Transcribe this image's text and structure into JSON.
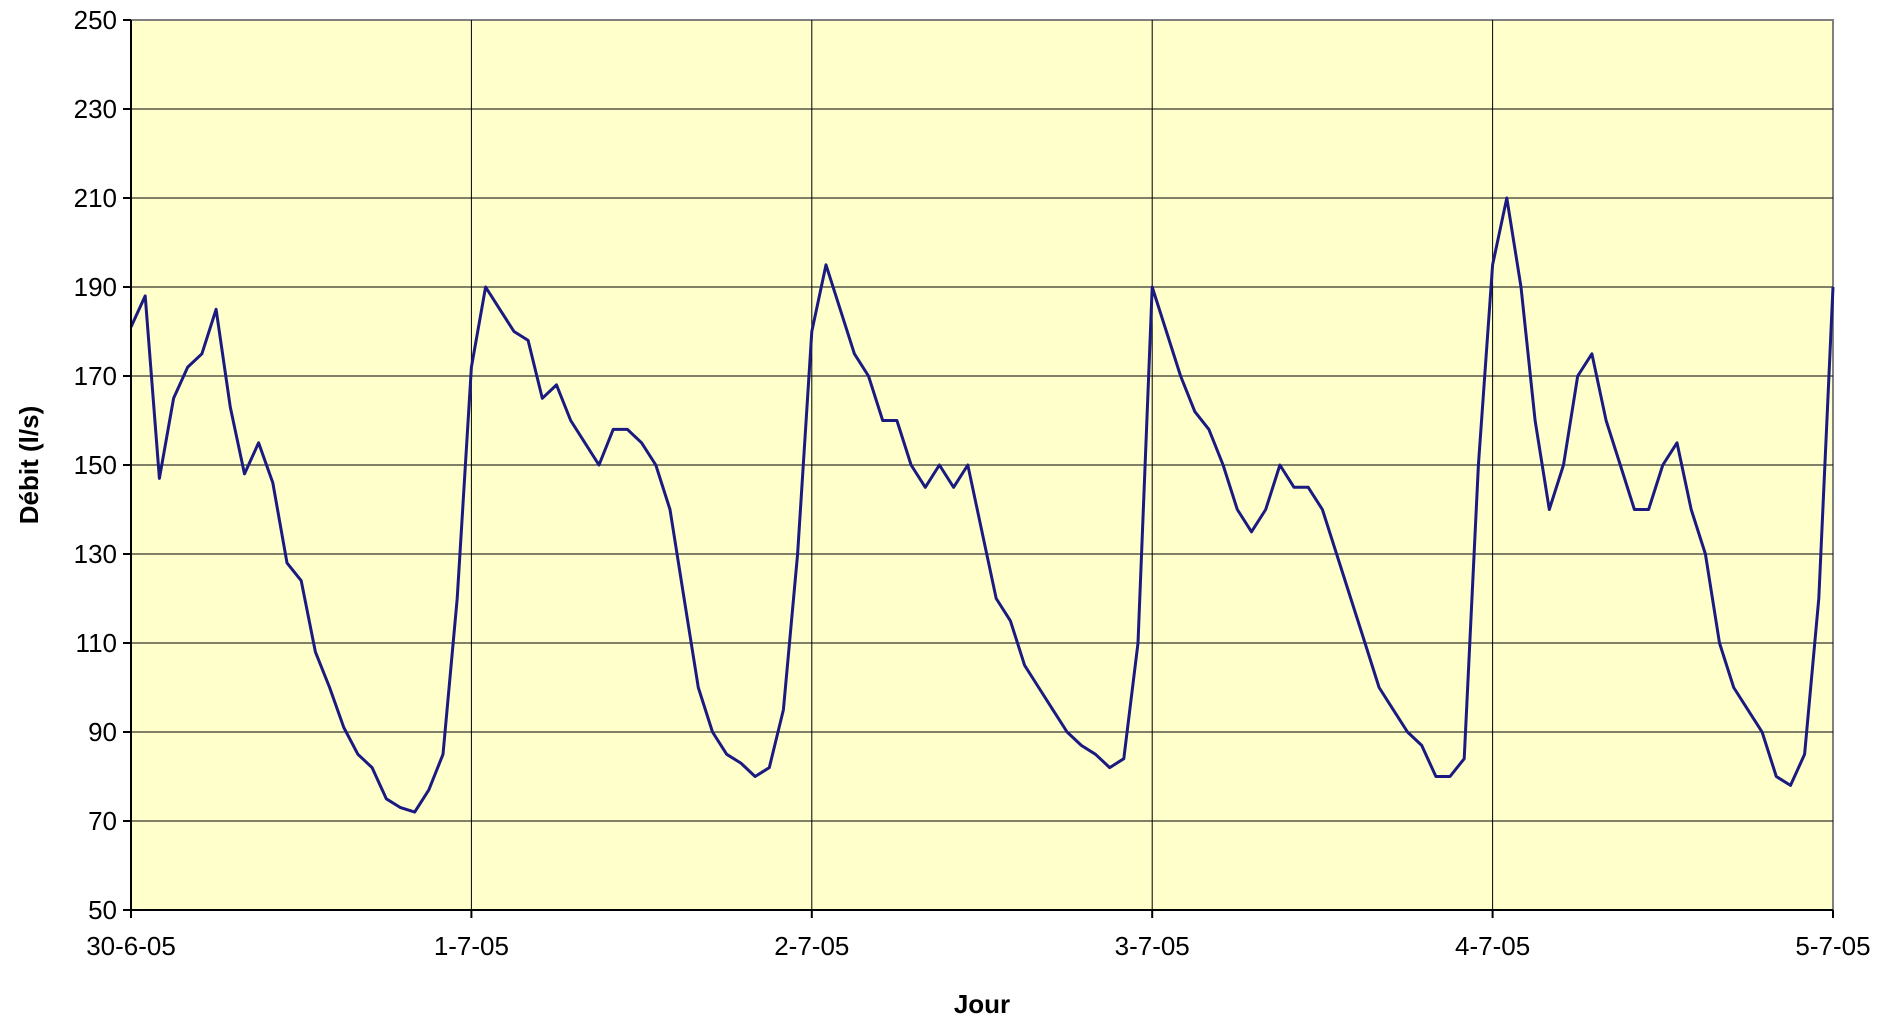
{
  "chart_data": {
    "type": "line",
    "title": "",
    "xlabel": "Jour",
    "ylabel": "Débit (l/s)",
    "xlim": [
      "30-6-05",
      "5-7-05"
    ],
    "ylim": [
      50,
      250
    ],
    "x_ticks": [
      "30-6-05",
      "1-7-05",
      "2-7-05",
      "3-7-05",
      "4-7-05",
      "5-7-05"
    ],
    "y_ticks": [
      50,
      70,
      90,
      110,
      130,
      150,
      170,
      190,
      210,
      230,
      250
    ],
    "grid": true,
    "legend": "none",
    "colors": {
      "line": "#1a1a80",
      "plot_background": "#ffffcc",
      "grid": "#000000"
    },
    "series": [
      {
        "x": [
          "30-6-05 00:00",
          "30-6-05 01:00",
          "30-6-05 02:00",
          "30-6-05 03:00",
          "30-6-05 04:00",
          "30-6-05 05:00",
          "30-6-05 06:00",
          "30-6-05 07:00",
          "30-6-05 08:00",
          "30-6-05 09:00",
          "30-6-05 10:00",
          "30-6-05 11:00",
          "30-6-05 12:00",
          "30-6-05 13:00",
          "30-6-05 14:00",
          "30-6-05 15:00",
          "30-6-05 16:00",
          "30-6-05 17:00",
          "30-6-05 18:00",
          "30-6-05 19:00",
          "30-6-05 20:00",
          "30-6-05 21:00",
          "30-6-05 22:00",
          "30-6-05 23:00",
          "1-7-05 00:00",
          "1-7-05 01:00",
          "1-7-05 02:00",
          "1-7-05 03:00",
          "1-7-05 04:00",
          "1-7-05 05:00",
          "1-7-05 06:00",
          "1-7-05 07:00",
          "1-7-05 08:00",
          "1-7-05 09:00",
          "1-7-05 10:00",
          "1-7-05 11:00",
          "1-7-05 12:00",
          "1-7-05 13:00",
          "1-7-05 14:00",
          "1-7-05 15:00",
          "1-7-05 16:00",
          "1-7-05 17:00",
          "1-7-05 18:00",
          "1-7-05 19:00",
          "1-7-05 20:00",
          "1-7-05 21:00",
          "1-7-05 22:00",
          "1-7-05 23:00",
          "2-7-05 00:00",
          "2-7-05 01:00",
          "2-7-05 02:00",
          "2-7-05 03:00",
          "2-7-05 04:00",
          "2-7-05 05:00",
          "2-7-05 06:00",
          "2-7-05 07:00",
          "2-7-05 08:00",
          "2-7-05 09:00",
          "2-7-05 10:00",
          "2-7-05 11:00",
          "2-7-05 12:00",
          "2-7-05 13:00",
          "2-7-05 14:00",
          "2-7-05 15:00",
          "2-7-05 16:00",
          "2-7-05 17:00",
          "2-7-05 18:00",
          "2-7-05 19:00",
          "2-7-05 20:00",
          "2-7-05 21:00",
          "2-7-05 22:00",
          "2-7-05 23:00",
          "3-7-05 00:00",
          "3-7-05 01:00",
          "3-7-05 02:00",
          "3-7-05 03:00",
          "3-7-05 04:00",
          "3-7-05 05:00",
          "3-7-05 06:00",
          "3-7-05 07:00",
          "3-7-05 08:00",
          "3-7-05 09:00",
          "3-7-05 10:00",
          "3-7-05 11:00",
          "3-7-05 12:00",
          "3-7-05 13:00",
          "3-7-05 14:00",
          "3-7-05 15:00",
          "3-7-05 16:00",
          "3-7-05 17:00",
          "3-7-05 18:00",
          "3-7-05 19:00",
          "3-7-05 20:00",
          "3-7-05 21:00",
          "3-7-05 22:00",
          "3-7-05 23:00",
          "4-7-05 00:00",
          "4-7-05 01:00",
          "4-7-05 02:00",
          "4-7-05 03:00",
          "4-7-05 04:00",
          "4-7-05 05:00",
          "4-7-05 06:00",
          "4-7-05 07:00",
          "4-7-05 08:00",
          "4-7-05 09:00",
          "4-7-05 10:00",
          "4-7-05 11:00",
          "4-7-05 12:00",
          "4-7-05 13:00",
          "4-7-05 14:00",
          "4-7-05 15:00",
          "4-7-05 16:00",
          "4-7-05 17:00",
          "4-7-05 18:00",
          "4-7-05 19:00",
          "4-7-05 20:00",
          "4-7-05 21:00",
          "4-7-05 22:00",
          "4-7-05 23:00",
          "5-7-05 00:00"
        ],
        "values": [
          181,
          188,
          147,
          165,
          172,
          175,
          185,
          163,
          148,
          155,
          146,
          128,
          124,
          108,
          100,
          91,
          85,
          82,
          75,
          73,
          72,
          77,
          85,
          120,
          172,
          190,
          185,
          180,
          178,
          165,
          168,
          160,
          155,
          150,
          158,
          158,
          155,
          150,
          140,
          120,
          100,
          90,
          85,
          83,
          80,
          82,
          95,
          130,
          180,
          195,
          185,
          175,
          170,
          160,
          160,
          150,
          145,
          150,
          145,
          150,
          135,
          120,
          115,
          105,
          100,
          95,
          90,
          87,
          85,
          82,
          84,
          110,
          190,
          180,
          170,
          162,
          158,
          150,
          140,
          135,
          140,
          150,
          145,
          145,
          140,
          130,
          120,
          110,
          100,
          95,
          90,
          87,
          80,
          80,
          84,
          150,
          195,
          210,
          190,
          160,
          140,
          150,
          170,
          175,
          160,
          150,
          140,
          140,
          150,
          155,
          140,
          130,
          110,
          100,
          95,
          90,
          80,
          78,
          85,
          120,
          190
        ]
      }
    ]
  }
}
